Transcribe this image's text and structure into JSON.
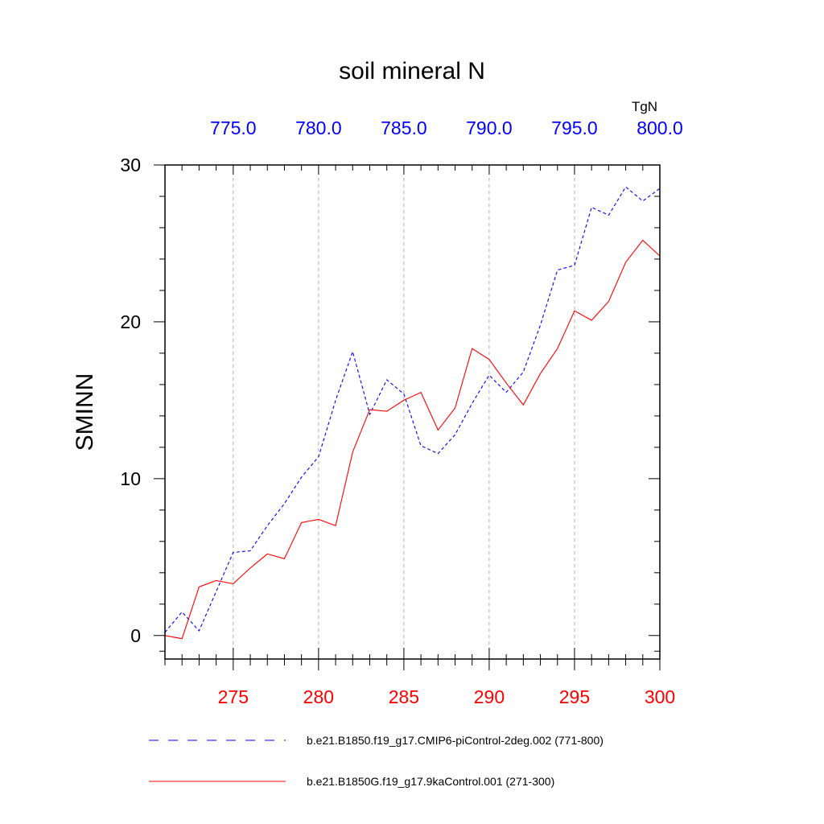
{
  "chart_data": {
    "type": "line",
    "title": "soil mineral N",
    "ylabel": "SMINN",
    "y_units": "TgN",
    "ylim": [
      -1.5,
      30
    ],
    "y_ticks": [
      0,
      10,
      20,
      30
    ],
    "y_tick_labels": [
      "0",
      "10",
      "20",
      "30"
    ],
    "x_bottom": {
      "range": [
        271,
        300
      ],
      "ticks": [
        275,
        280,
        285,
        290,
        295,
        300
      ],
      "tick_labels": [
        "275",
        "280",
        "285",
        "290",
        "295",
        "300"
      ],
      "color": "#ff0000"
    },
    "x_top": {
      "range": [
        771,
        800
      ],
      "ticks": [
        775,
        780,
        785,
        790,
        795,
        800
      ],
      "tick_labels": [
        "775.0",
        "780.0",
        "785.0",
        "790.0",
        "795.0",
        "800.0"
      ],
      "color": "#0000ff"
    },
    "grid": "vertical-dashed",
    "series": [
      {
        "name": "b.e21.B1850.f19_g17.CMIP6-piControl-2deg.002 (771-800)",
        "axis": "top",
        "color": "#0000ff",
        "style": "dashed",
        "x": [
          771,
          772,
          773,
          774,
          775,
          776,
          777,
          778,
          779,
          780,
          781,
          782,
          783,
          784,
          785,
          786,
          787,
          788,
          789,
          790,
          791,
          792,
          793,
          794,
          795,
          796,
          797,
          798,
          799,
          800
        ],
        "values": [
          0.2,
          1.5,
          0.3,
          2.8,
          5.3,
          5.4,
          7.0,
          8.4,
          10.1,
          11.4,
          15.0,
          18.1,
          14.1,
          16.3,
          15.4,
          12.1,
          11.6,
          12.8,
          14.8,
          16.6,
          15.5,
          16.8,
          19.8,
          23.3,
          23.6,
          27.3,
          26.8,
          28.6,
          27.7,
          28.5
        ]
      },
      {
        "name": "b.e21.B1850G.f19_g17.9kaControl.001 (271-300)",
        "axis": "bottom",
        "color": "#ff0000",
        "style": "solid",
        "x": [
          271,
          272,
          273,
          274,
          275,
          276,
          277,
          278,
          279,
          280,
          281,
          282,
          283,
          284,
          285,
          286,
          287,
          288,
          289,
          290,
          291,
          292,
          293,
          294,
          295,
          296,
          297,
          298,
          299,
          300
        ],
        "values": [
          0.0,
          -0.2,
          3.1,
          3.5,
          3.3,
          4.3,
          5.2,
          4.9,
          7.2,
          7.4,
          7.0,
          11.7,
          14.4,
          14.3,
          15.0,
          15.5,
          13.1,
          14.5,
          18.3,
          17.6,
          16.1,
          14.7,
          16.7,
          18.3,
          20.7,
          20.1,
          21.3,
          23.8,
          25.2,
          24.2
        ]
      }
    ]
  }
}
